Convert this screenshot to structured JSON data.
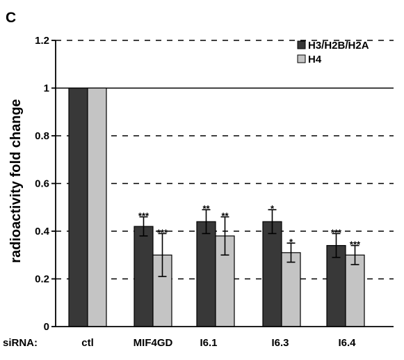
{
  "chart_data": {
    "type": "bar",
    "panel_label": "C",
    "ylabel": "radioactivity fold change",
    "xlabel_prefix": "siRNA:",
    "categories": [
      "ctl",
      "MIF4GD",
      "I6.1",
      "I6.3",
      "I6.4"
    ],
    "ylim": [
      0,
      1.2
    ],
    "yticks": [
      "0",
      "0.2",
      "0.4",
      "0.6",
      "0.8",
      "1",
      "1.2"
    ],
    "ytick_values": [
      0,
      0.2,
      0.4,
      0.6,
      0.8,
      1,
      1.2
    ],
    "gridlines": "dashed",
    "reference_line": 1,
    "legend_position": "top-right",
    "series": [
      {
        "name": "H3/H2B/H2A",
        "color": "#383838",
        "values": [
          1.0,
          0.42,
          0.44,
          0.44,
          0.34
        ],
        "errors": [
          0,
          0.04,
          0.05,
          0.05,
          0.05
        ],
        "significance": [
          "",
          "***",
          "**",
          "*",
          "***"
        ]
      },
      {
        "name": "H4",
        "color": "#c4c4c4",
        "values": [
          1.0,
          0.3,
          0.38,
          0.31,
          0.3
        ],
        "errors": [
          0,
          0.09,
          0.08,
          0.04,
          0.04
        ],
        "significance": [
          "",
          "***",
          "**",
          "*",
          "***"
        ]
      }
    ]
  }
}
